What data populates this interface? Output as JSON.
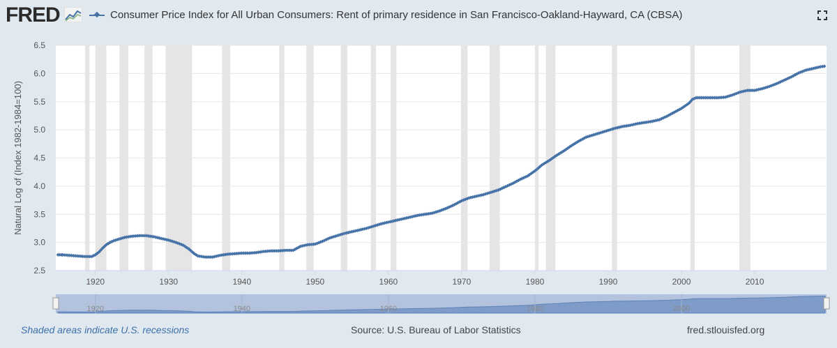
{
  "header": {
    "logo_text": "FRED",
    "logo_icon": "line-chart-icon",
    "series_title": "Consumer Price Index for All Urban Consumers: Rent of primary residence in San Francisco-Oakland-Hayward, CA (CBSA)",
    "expand_icon": "fullscreen-icon"
  },
  "footer": {
    "recession_note": "Shaded areas indicate U.S. recessions",
    "source": "Source: U.S. Bureau of Labor Statistics",
    "site": "fred.stlouisfed.org"
  },
  "colors": {
    "series": "#4572a7",
    "recession": "#e5e5e5",
    "background": "#e1e9f0",
    "navigator": "#b3c3de"
  },
  "chart_data": {
    "type": "line",
    "ylabel": "Natural Log of (Index 1982-1984=100)",
    "xlabel": "",
    "xlim": [
      1914.6,
      2019.8
    ],
    "ylim": [
      2.5,
      6.5
    ],
    "yticks": [
      "2.5",
      "3.0",
      "3.5",
      "4.0",
      "4.5",
      "5.0",
      "5.5",
      "6.0",
      "6.5"
    ],
    "xticks": [
      "1920",
      "1930",
      "1940",
      "1950",
      "1960",
      "1970",
      "1980",
      "1990",
      "2000",
      "2010"
    ],
    "navigator_ticks": [
      "1920",
      "1940",
      "1960",
      "1980",
      "2000"
    ],
    "grid": true,
    "recessions": [
      [
        1918.6,
        1919.2
      ],
      [
        1920.0,
        1921.5
      ],
      [
        1923.3,
        1924.5
      ],
      [
        1926.7,
        1927.8
      ],
      [
        1929.6,
        1933.2
      ],
      [
        1937.3,
        1938.4
      ],
      [
        1945.1,
        1945.8
      ],
      [
        1948.8,
        1949.8
      ],
      [
        1953.5,
        1954.4
      ],
      [
        1957.6,
        1958.3
      ],
      [
        1960.3,
        1961.1
      ],
      [
        1969.9,
        1970.8
      ],
      [
        1973.8,
        1975.2
      ],
      [
        1980.0,
        1980.5
      ],
      [
        1981.5,
        1982.8
      ],
      [
        1990.5,
        1991.2
      ],
      [
        2001.2,
        2001.8
      ],
      [
        2007.9,
        2009.4
      ]
    ],
    "series": [
      {
        "name": "",
        "points": [
          [
            1914.9,
            2.78
          ],
          [
            1915.5,
            2.78
          ],
          [
            1916.5,
            2.77
          ],
          [
            1917.5,
            2.76
          ],
          [
            1918.5,
            2.75
          ],
          [
            1919.5,
            2.75
          ],
          [
            1920.0,
            2.78
          ],
          [
            1920.5,
            2.83
          ],
          [
            1921.0,
            2.9
          ],
          [
            1921.5,
            2.96
          ],
          [
            1922.0,
            3.0
          ],
          [
            1922.5,
            3.03
          ],
          [
            1923.0,
            3.05
          ],
          [
            1923.5,
            3.07
          ],
          [
            1924.0,
            3.09
          ],
          [
            1924.5,
            3.1
          ],
          [
            1925.0,
            3.11
          ],
          [
            1926.0,
            3.12
          ],
          [
            1927.0,
            3.12
          ],
          [
            1928.0,
            3.1
          ],
          [
            1929.0,
            3.07
          ],
          [
            1930.0,
            3.04
          ],
          [
            1931.0,
            3.0
          ],
          [
            1932.0,
            2.95
          ],
          [
            1932.8,
            2.88
          ],
          [
            1933.5,
            2.8
          ],
          [
            1934.0,
            2.76
          ],
          [
            1935.0,
            2.74
          ],
          [
            1936.0,
            2.74
          ],
          [
            1937.0,
            2.77
          ],
          [
            1938.0,
            2.79
          ],
          [
            1939.0,
            2.8
          ],
          [
            1940.0,
            2.81
          ],
          [
            1941.0,
            2.81
          ],
          [
            1942.0,
            2.82
          ],
          [
            1943.0,
            2.84
          ],
          [
            1944.0,
            2.85
          ],
          [
            1945.0,
            2.85
          ],
          [
            1946.0,
            2.86
          ],
          [
            1947.0,
            2.86
          ],
          [
            1948.0,
            2.93
          ],
          [
            1949.0,
            2.96
          ],
          [
            1950.0,
            2.97
          ],
          [
            1951.0,
            3.02
          ],
          [
            1952.0,
            3.08
          ],
          [
            1953.0,
            3.12
          ],
          [
            1954.0,
            3.16
          ],
          [
            1955.0,
            3.19
          ],
          [
            1956.0,
            3.22
          ],
          [
            1957.0,
            3.25
          ],
          [
            1958.0,
            3.29
          ],
          [
            1959.0,
            3.33
          ],
          [
            1960.0,
            3.36
          ],
          [
            1961.0,
            3.39
          ],
          [
            1962.0,
            3.42
          ],
          [
            1963.0,
            3.45
          ],
          [
            1964.0,
            3.48
          ],
          [
            1965.0,
            3.5
          ],
          [
            1966.0,
            3.52
          ],
          [
            1967.0,
            3.56
          ],
          [
            1968.0,
            3.61
          ],
          [
            1969.0,
            3.67
          ],
          [
            1970.0,
            3.74
          ],
          [
            1971.0,
            3.79
          ],
          [
            1972.0,
            3.82
          ],
          [
            1973.0,
            3.85
          ],
          [
            1974.0,
            3.89
          ],
          [
            1975.0,
            3.93
          ],
          [
            1976.0,
            3.99
          ],
          [
            1977.0,
            4.05
          ],
          [
            1978.0,
            4.12
          ],
          [
            1979.0,
            4.18
          ],
          [
            1980.0,
            4.27
          ],
          [
            1981.0,
            4.38
          ],
          [
            1982.0,
            4.46
          ],
          [
            1983.0,
            4.55
          ],
          [
            1984.0,
            4.63
          ],
          [
            1985.0,
            4.72
          ],
          [
            1986.0,
            4.8
          ],
          [
            1987.0,
            4.87
          ],
          [
            1988.0,
            4.91
          ],
          [
            1989.0,
            4.95
          ],
          [
            1990.0,
            4.99
          ],
          [
            1991.0,
            5.03
          ],
          [
            1992.0,
            5.06
          ],
          [
            1993.0,
            5.08
          ],
          [
            1994.0,
            5.11
          ],
          [
            1995.0,
            5.13
          ],
          [
            1996.0,
            5.15
          ],
          [
            1997.0,
            5.18
          ],
          [
            1998.0,
            5.24
          ],
          [
            1999.0,
            5.31
          ],
          [
            2000.0,
            5.38
          ],
          [
            2001.0,
            5.47
          ],
          [
            2001.5,
            5.54
          ],
          [
            2002.0,
            5.57
          ],
          [
            2003.0,
            5.57
          ],
          [
            2004.0,
            5.57
          ],
          [
            2005.0,
            5.57
          ],
          [
            2006.0,
            5.58
          ],
          [
            2007.0,
            5.62
          ],
          [
            2008.0,
            5.67
          ],
          [
            2009.0,
            5.7
          ],
          [
            2010.0,
            5.7
          ],
          [
            2011.0,
            5.73
          ],
          [
            2012.0,
            5.77
          ],
          [
            2013.0,
            5.82
          ],
          [
            2014.0,
            5.88
          ],
          [
            2015.0,
            5.94
          ],
          [
            2016.0,
            6.01
          ],
          [
            2017.0,
            6.06
          ],
          [
            2018.0,
            6.09
          ],
          [
            2019.0,
            6.12
          ],
          [
            2019.6,
            6.13
          ]
        ]
      }
    ]
  }
}
